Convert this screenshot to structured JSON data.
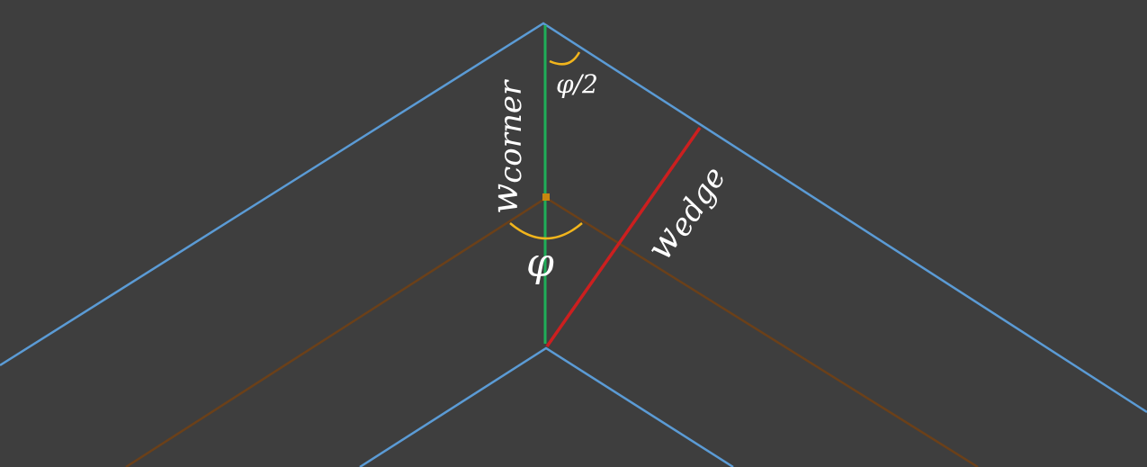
{
  "labels": {
    "w_corner": "w",
    "w_corner_sub": "corner",
    "w_edge": "w",
    "w_edge_sub": "edge",
    "phi": "φ",
    "phi_half": "φ/2"
  },
  "colors": {
    "background": "#3e3e3e",
    "outer_edge": "#5b9bd5",
    "center_line": "#6b4019",
    "corner_width": "#1fae58",
    "edge_width": "#cc1f1f",
    "angle_arc": "#f2b51c",
    "label_text": "#ffffff"
  }
}
